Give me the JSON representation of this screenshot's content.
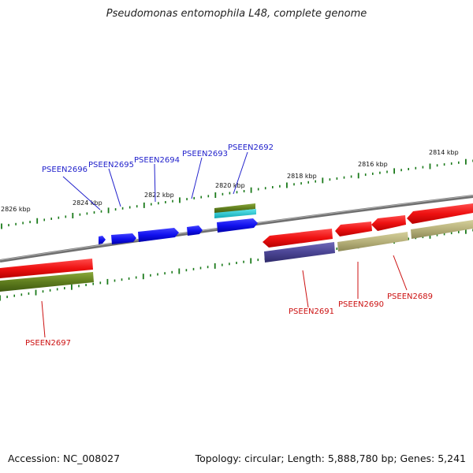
{
  "title": "Pseudomonas entomophila L48, complete genome",
  "footer": {
    "accession": "Accession: NC_008027",
    "summary": "Topology: circular; Length: 5,888,780 bp; Genes: 5,241"
  },
  "colors": {
    "backbone": "#7a7a7a",
    "tick": "#1a7a1a",
    "red": "#ee1111",
    "blue": "#1111ee",
    "olive": "#5f7d1e",
    "khaki": "#b6b07a",
    "cyan": "#1ec8d2",
    "purple": "#4b4594",
    "labelBlue": "#2222cc",
    "labelRed": "#cc1111"
  },
  "kbp_labels": [
    {
      "text": "2826 kbp"
    },
    {
      "text": "2824 kbp"
    },
    {
      "text": "2822 kbp"
    },
    {
      "text": "2820 kbp"
    },
    {
      "text": "2818 kbp"
    },
    {
      "text": "2816 kbp"
    },
    {
      "text": "2814 kbp"
    }
  ],
  "gene_labels": [
    {
      "text": "PSEEN2696",
      "strand": "forward"
    },
    {
      "text": "PSEEN2695",
      "strand": "forward"
    },
    {
      "text": "PSEEN2694",
      "strand": "forward"
    },
    {
      "text": "PSEEN2693",
      "strand": "forward"
    },
    {
      "text": "PSEEN2692",
      "strand": "forward"
    },
    {
      "text": "PSEEN2691",
      "strand": "reverse"
    },
    {
      "text": "PSEEN2690",
      "strand": "reverse"
    },
    {
      "text": "PSEEN2689",
      "strand": "reverse"
    },
    {
      "text": "PSEEN2697",
      "strand": "reverse"
    }
  ]
}
